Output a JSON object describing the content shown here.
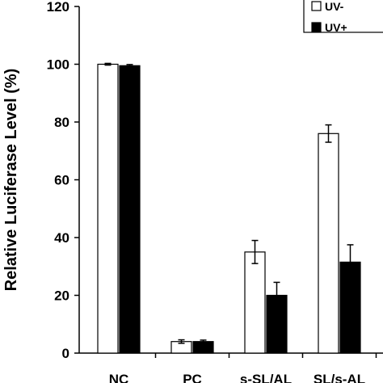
{
  "chart_data": {
    "type": "bar",
    "title": "",
    "xlabel": "",
    "ylabel": "Relative Luciferase Level (%)",
    "ylim": [
      0,
      120
    ],
    "yticks": [
      0,
      20,
      40,
      60,
      80,
      100,
      120
    ],
    "grid": false,
    "legend_position": "top-right",
    "categories": [
      "NC",
      "PC",
      "s-SL/AL",
      "SL/s-AL"
    ],
    "series": [
      {
        "name": "UV-",
        "values": [
          100,
          4,
          35,
          76
        ],
        "errors": [
          0.3,
          0.6,
          4,
          3
        ],
        "color": "#ffffff"
      },
      {
        "name": "UV+",
        "values": [
          99.5,
          4,
          20,
          31.5
        ],
        "errors": [
          0.4,
          0.5,
          4.5,
          6
        ],
        "color": "#000000"
      }
    ]
  }
}
